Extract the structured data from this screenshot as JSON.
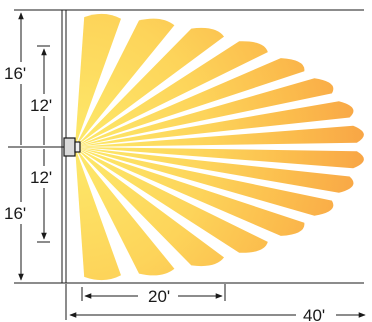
{
  "diagram": {
    "colors": {
      "beam_inner": "#fde96a",
      "beam_mid": "#fcc64a",
      "beam_outer": "#f8a445",
      "line": "#1a1a1a",
      "sensor_body": "#d9d9d9"
    },
    "sensor_icon": "motion-sensor-icon",
    "beam_count": 16,
    "labels": {
      "vertical_upper_outer": "16'",
      "vertical_upper_inner": "12'",
      "vertical_lower_inner": "12'",
      "vertical_lower_outer": "16'",
      "horizontal_near": "20'",
      "horizontal_far": "40'"
    }
  }
}
